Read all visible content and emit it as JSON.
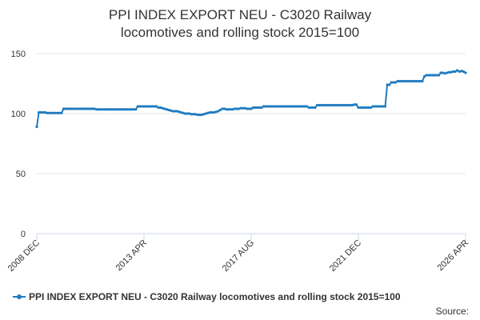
{
  "chart_data": {
    "type": "line",
    "title": "PPI INDEX EXPORT NEU - C3020 Railway locomotives and rolling stock 2015=100",
    "source": "Source:",
    "categories": [
      "2008 DEC",
      null,
      null,
      null,
      null,
      null,
      null,
      null,
      null,
      null,
      null,
      null,
      null,
      null,
      null,
      null,
      null,
      null,
      null,
      null,
      null,
      null,
      null,
      null,
      null,
      null,
      null,
      null,
      null,
      null,
      null,
      null,
      null,
      null,
      null,
      null,
      null,
      null,
      null,
      null,
      null,
      null,
      null,
      null,
      null,
      null,
      null,
      null,
      null,
      null,
      null,
      null,
      "2013 APR",
      null,
      null,
      null,
      null,
      null,
      null,
      null,
      null,
      null,
      null,
      null,
      null,
      null,
      null,
      null,
      null,
      null,
      null,
      null,
      null,
      null,
      null,
      null,
      null,
      null,
      null,
      null,
      null,
      null,
      null,
      null,
      null,
      null,
      null,
      null,
      null,
      null,
      null,
      null,
      null,
      null,
      null,
      null,
      null,
      null,
      null,
      null,
      null,
      null,
      null,
      null,
      "2017 AUG",
      null,
      null,
      null,
      null,
      null,
      null,
      null,
      null,
      null,
      null,
      null,
      null,
      null,
      null,
      null,
      null,
      null,
      null,
      null,
      null,
      null,
      null,
      null,
      null,
      null,
      null,
      null,
      null,
      null,
      null,
      null,
      null,
      null,
      null,
      null,
      null,
      null,
      null,
      null,
      null,
      null,
      null,
      null,
      null,
      null,
      null,
      null,
      null,
      null,
      null,
      null,
      "2021 DEC",
      null,
      null,
      null,
      null,
      null,
      null,
      null,
      null,
      null,
      null,
      null,
      null,
      null,
      null,
      null,
      null,
      null,
      null,
      null,
      null,
      null,
      null,
      null,
      null,
      null,
      null,
      null,
      null,
      null,
      null,
      null,
      null,
      null,
      null,
      null,
      null,
      null,
      null,
      null,
      null,
      null,
      null,
      null,
      null,
      null,
      null,
      null,
      null,
      null,
      null,
      null,
      "2026 APR"
    ],
    "series": [
      {
        "name": "PPI INDEX EXPORT NEU - C3020 Railway locomotives and rolling stock 2015=100",
        "color": "#1f7bbf",
        "values": [
          89,
          101,
          101,
          101,
          101,
          100.5,
          100.5,
          100.5,
          100.5,
          100.5,
          100.5,
          100.5,
          100.5,
          104,
          104,
          104,
          104,
          104,
          104,
          104,
          104,
          104,
          104,
          104,
          104,
          104,
          104,
          104,
          104,
          103.5,
          103.5,
          103.5,
          103.5,
          103.5,
          103.5,
          103.5,
          103.5,
          103.5,
          103.5,
          103.5,
          103.5,
          103.5,
          103.5,
          103.5,
          103.5,
          103.5,
          103.5,
          103.5,
          103.5,
          106,
          106,
          106,
          106,
          106,
          106,
          106,
          106,
          106,
          106,
          105,
          105,
          104.5,
          104,
          103.5,
          103,
          102.5,
          102,
          102,
          102,
          101.5,
          101,
          100.5,
          100,
          100,
          100,
          99.5,
          99.5,
          99.5,
          99,
          99,
          99,
          99.5,
          100,
          100.5,
          101,
          101,
          101,
          101.5,
          102,
          103,
          104,
          104,
          103.5,
          103.5,
          103.5,
          103.5,
          104,
          104,
          104,
          104.5,
          104.5,
          104.5,
          104,
          104,
          104,
          105,
          105,
          105,
          105,
          105,
          106,
          106,
          106,
          106,
          106,
          106,
          106,
          106,
          106,
          106,
          106,
          106,
          106,
          106,
          106,
          106,
          106,
          106,
          106,
          106,
          106,
          106,
          105,
          105,
          105,
          105,
          107,
          107,
          107,
          107,
          107,
          107,
          107,
          107,
          107,
          107,
          107,
          107,
          107,
          107,
          107,
          107,
          107,
          107,
          107.5,
          107.5,
          105,
          105,
          105,
          105,
          105,
          105,
          105,
          106,
          106,
          106,
          106,
          106,
          106,
          106,
          124,
          124,
          126,
          126,
          126,
          127,
          127,
          127,
          127,
          127,
          127,
          127,
          127,
          127,
          127,
          127,
          127,
          127,
          131,
          132,
          132,
          132,
          132,
          132,
          132,
          132,
          134,
          134,
          133.5,
          134,
          134.5,
          134.5,
          135,
          135,
          136,
          135,
          135.5,
          135,
          134
        ]
      }
    ],
    "ylim": [
      0,
      150
    ],
    "yticks": [
      0,
      50,
      100,
      150
    ],
    "grid": true,
    "legend": "bottom"
  }
}
